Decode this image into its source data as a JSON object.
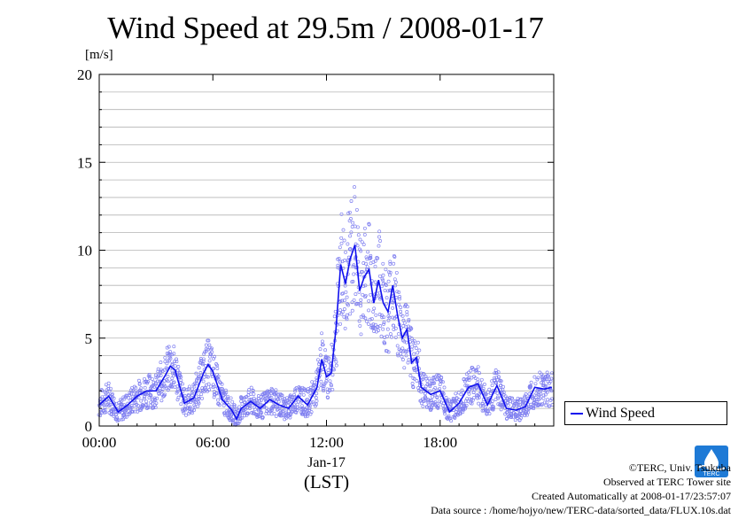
{
  "chart_data": {
    "type": "scatter",
    "title": "Wind Speed at 29.5m / 2008-01-17",
    "ylabel": "[m/s]",
    "xlabel": "(LST)",
    "date_label": "Jan-17",
    "ylim": [
      0,
      20
    ],
    "xlim_hours": [
      0,
      24
    ],
    "x_tick_labels": [
      "00:00",
      "06:00",
      "12:00",
      "18:00"
    ],
    "y_tick_labels": [
      "0",
      "5",
      "10",
      "15",
      "20"
    ],
    "grid": true,
    "legend_position": "right",
    "series": [
      {
        "name": "Wind Speed",
        "color": "#1010ee",
        "points_color": "#8080f0",
        "x_hours": [
          0.0,
          0.5,
          1.0,
          1.5,
          2.0,
          2.5,
          3.0,
          3.5,
          3.75,
          4.0,
          4.5,
          5.0,
          5.5,
          5.75,
          6.0,
          6.5,
          7.0,
          7.25,
          7.5,
          8.0,
          8.5,
          9.0,
          9.5,
          10.0,
          10.5,
          11.0,
          11.5,
          11.75,
          12.0,
          12.25,
          12.5,
          12.75,
          13.0,
          13.25,
          13.5,
          13.75,
          14.0,
          14.25,
          14.5,
          14.75,
          15.0,
          15.25,
          15.5,
          15.75,
          16.0,
          16.25,
          16.5,
          16.75,
          17.0,
          17.5,
          18.0,
          18.5,
          19.0,
          19.5,
          20.0,
          20.5,
          21.0,
          21.5,
          22.0,
          22.5,
          23.0,
          23.5,
          23.9
        ],
        "y": [
          1.2,
          1.7,
          0.8,
          1.2,
          1.7,
          2.0,
          2.0,
          2.9,
          3.4,
          3.2,
          1.3,
          1.6,
          3.0,
          3.5,
          3.1,
          1.5,
          0.9,
          0.4,
          1.0,
          1.4,
          1.0,
          1.5,
          1.2,
          1.0,
          1.7,
          1.2,
          2.2,
          3.8,
          2.8,
          3.0,
          5.5,
          9.2,
          8.1,
          9.5,
          10.3,
          7.7,
          8.5,
          8.9,
          7.0,
          8.3,
          7.0,
          6.5,
          8.0,
          6.3,
          5.0,
          5.5,
          3.6,
          3.9,
          2.2,
          1.8,
          2.0,
          0.8,
          1.3,
          2.2,
          2.4,
          1.2,
          2.3,
          1.0,
          0.9,
          1.1,
          2.2,
          2.1,
          2.2
        ]
      }
    ]
  },
  "credits": {
    "copyright": "©TERC, Univ. Tsukuba",
    "observed": "Observed at TERC Tower site",
    "created": "Created Automatically at 2008-01-17/23:57:07",
    "source": "Data source : /home/hojyo/new/TERC-data/sorted_data/FLUX.10s.dat"
  },
  "logo_text": "TERC"
}
